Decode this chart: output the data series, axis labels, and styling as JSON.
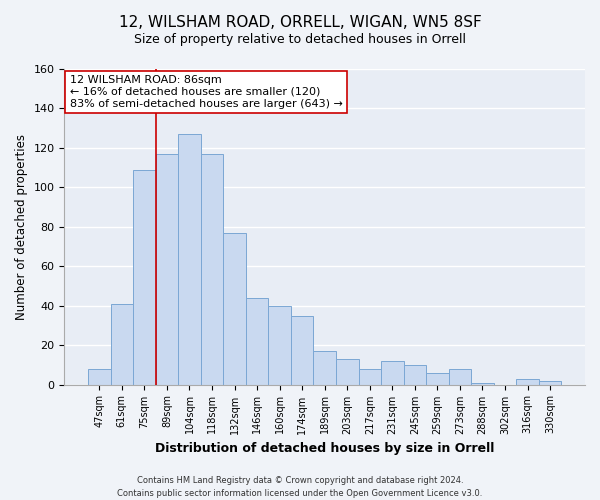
{
  "title": "12, WILSHAM ROAD, ORRELL, WIGAN, WN5 8SF",
  "subtitle": "Size of property relative to detached houses in Orrell",
  "xlabel": "Distribution of detached houses by size in Orrell",
  "ylabel": "Number of detached properties",
  "bar_labels": [
    "47sqm",
    "61sqm",
    "75sqm",
    "89sqm",
    "104sqm",
    "118sqm",
    "132sqm",
    "146sqm",
    "160sqm",
    "174sqm",
    "189sqm",
    "203sqm",
    "217sqm",
    "231sqm",
    "245sqm",
    "259sqm",
    "273sqm",
    "288sqm",
    "302sqm",
    "316sqm",
    "330sqm"
  ],
  "bar_heights": [
    8,
    41,
    109,
    117,
    127,
    117,
    77,
    44,
    40,
    35,
    17,
    13,
    8,
    12,
    10,
    6,
    8,
    1,
    0,
    3,
    2
  ],
  "bar_color": "#c9d9f0",
  "bar_edge_color": "#7ba7d4",
  "vline_x_index": 2.5,
  "vline_color": "#cc0000",
  "ylim": [
    0,
    160
  ],
  "yticks": [
    0,
    20,
    40,
    60,
    80,
    100,
    120,
    140,
    160
  ],
  "annotation_title": "12 WILSHAM ROAD: 86sqm",
  "annotation_line1": "← 16% of detached houses are smaller (120)",
  "annotation_line2": "83% of semi-detached houses are larger (643) →",
  "footer1": "Contains HM Land Registry data © Crown copyright and database right 2024.",
  "footer2": "Contains public sector information licensed under the Open Government Licence v3.0.",
  "background_color": "#f0f3f8",
  "plot_bg_color": "#e8edf5",
  "grid_color": "#ffffff",
  "title_fontsize": 11,
  "subtitle_fontsize": 9,
  "annotation_fontsize": 8
}
